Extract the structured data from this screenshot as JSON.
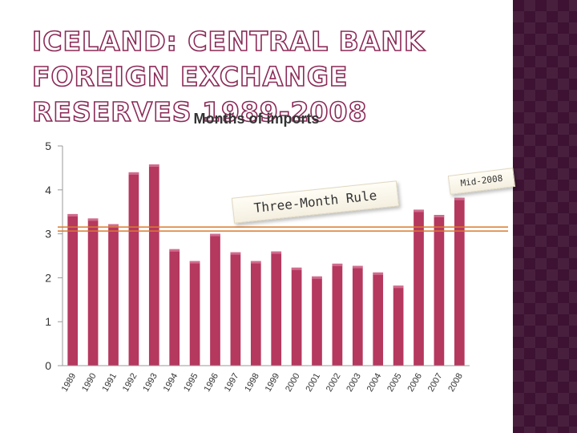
{
  "slide": {
    "title": "ICELAND: CENTRAL BANK FOREIGN EXCHANGE RESERVES 1989-2008"
  },
  "annotations": {
    "rule_label": "Three-Month Rule",
    "rule_value": 3.1,
    "mid_label": "Mid-2008"
  },
  "colors": {
    "bar": "#b5385f",
    "rule_line": "#d97a2c",
    "title_outline": "#8b2a57",
    "side_band": "#3d1232"
  },
  "chart_data": {
    "type": "bar",
    "title": "Months of imports",
    "categories": [
      "1989",
      "1990",
      "1991",
      "1992",
      "1993",
      "1994",
      "1995",
      "1996",
      "1997",
      "1998",
      "1999",
      "2000",
      "2001",
      "2002",
      "2003",
      "2004",
      "2005",
      "2006",
      "2007",
      "2008"
    ],
    "values": [
      3.45,
      3.35,
      3.22,
      4.4,
      4.58,
      2.65,
      2.38,
      3.0,
      2.58,
      2.38,
      2.6,
      2.23,
      2.03,
      2.32,
      2.27,
      2.12,
      1.82,
      3.55,
      3.43,
      3.82
    ],
    "yticks": [
      0,
      1,
      2,
      3,
      4,
      5
    ],
    "ylim": [
      0,
      5
    ],
    "grid": false,
    "legend": "none"
  }
}
